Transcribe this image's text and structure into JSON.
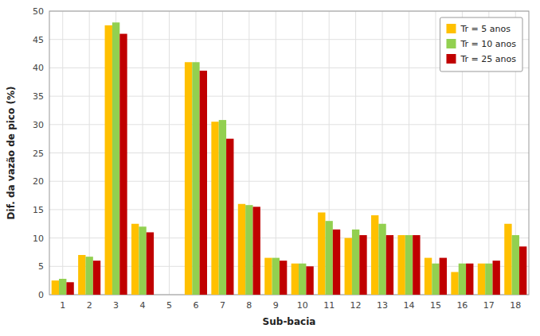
{
  "chart_data": {
    "type": "bar",
    "categories": [
      1,
      2,
      3,
      4,
      5,
      6,
      7,
      8,
      9,
      10,
      11,
      12,
      13,
      14,
      15,
      16,
      17,
      18
    ],
    "series": [
      {
        "name": "Tr = 5 anos",
        "color": "#FFC000",
        "values": [
          2.5,
          7.0,
          47.5,
          12.5,
          0,
          41.0,
          30.5,
          16.0,
          6.5,
          5.5,
          14.5,
          10.0,
          14.0,
          10.5,
          6.5,
          4.0,
          5.5,
          12.5
        ]
      },
      {
        "name": "Tr = 10 anos",
        "color": "#92D050",
        "values": [
          2.8,
          6.7,
          48.0,
          12.0,
          0,
          41.0,
          30.8,
          15.8,
          6.5,
          5.5,
          13.0,
          11.5,
          12.5,
          10.5,
          5.5,
          5.5,
          5.5,
          10.5
        ]
      },
      {
        "name": "Tr = 25 anos",
        "color": "#C00000",
        "values": [
          2.2,
          6.0,
          46.0,
          11.0,
          0,
          39.5,
          27.5,
          15.5,
          6.0,
          5.0,
          11.5,
          10.5,
          10.5,
          10.5,
          6.5,
          5.5,
          6.0,
          8.5
        ]
      }
    ],
    "xlabel": "Sub-bacia",
    "ylabel": "Dif. da vazão de pico (%)",
    "ylim": [
      0,
      50
    ],
    "yticks": [
      0,
      5,
      10,
      15,
      20,
      25,
      30,
      35,
      40,
      45,
      50
    ],
    "grid": true,
    "legend": "upper right"
  }
}
